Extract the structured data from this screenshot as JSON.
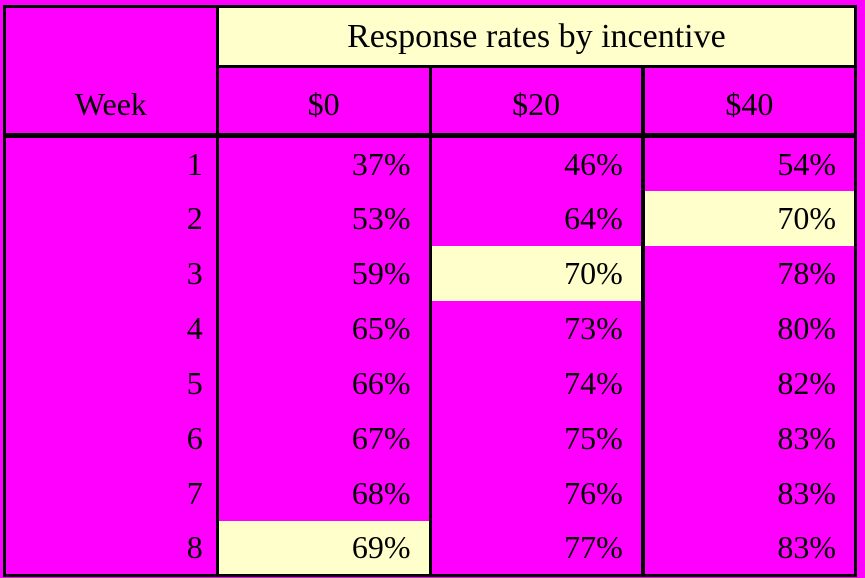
{
  "table": {
    "title": "Response rates by incentive",
    "week_header": "Week",
    "columns": [
      "$0",
      "$20",
      "$40"
    ],
    "rows": [
      {
        "week": "1",
        "values": [
          "37%",
          "46%",
          "54%"
        ],
        "highlight": [
          false,
          false,
          false
        ]
      },
      {
        "week": "2",
        "values": [
          "53%",
          "64%",
          "70%"
        ],
        "highlight": [
          false,
          false,
          true
        ]
      },
      {
        "week": "3",
        "values": [
          "59%",
          "70%",
          "78%"
        ],
        "highlight": [
          false,
          true,
          false
        ]
      },
      {
        "week": "4",
        "values": [
          "65%",
          "73%",
          "80%"
        ],
        "highlight": [
          false,
          false,
          false
        ]
      },
      {
        "week": "5",
        "values": [
          "66%",
          "74%",
          "82%"
        ],
        "highlight": [
          false,
          false,
          false
        ]
      },
      {
        "week": "6",
        "values": [
          "67%",
          "75%",
          "83%"
        ],
        "highlight": [
          false,
          false,
          false
        ]
      },
      {
        "week": "7",
        "values": [
          "68%",
          "76%",
          "83%"
        ],
        "highlight": [
          false,
          false,
          false
        ]
      },
      {
        "week": "8",
        "values": [
          "69%",
          "77%",
          "83%"
        ],
        "highlight": [
          true,
          false,
          false
        ]
      }
    ],
    "colors": {
      "background_magenta": "#FF00FF",
      "highlight_cream": "#FFFFCC",
      "border_black": "#000000",
      "text_black": "#000000"
    }
  },
  "chart_data": {
    "type": "table",
    "title": "Response rates by incentive",
    "row_header": "Week",
    "columns": [
      "$0",
      "$20",
      "$40"
    ],
    "weeks": [
      1,
      2,
      3,
      4,
      5,
      6,
      7,
      8
    ],
    "series": [
      {
        "name": "$0",
        "values_percent": [
          37,
          53,
          59,
          65,
          66,
          67,
          68,
          69
        ]
      },
      {
        "name": "$20",
        "values_percent": [
          46,
          64,
          70,
          73,
          74,
          75,
          76,
          77
        ]
      },
      {
        "name": "$40",
        "values_percent": [
          54,
          70,
          78,
          80,
          82,
          83,
          83,
          83
        ]
      }
    ],
    "highlighted_cells": [
      {
        "week": 2,
        "column": "$40",
        "value_percent": 70
      },
      {
        "week": 3,
        "column": "$20",
        "value_percent": 70
      },
      {
        "week": 8,
        "column": "$0",
        "value_percent": 69
      }
    ]
  }
}
